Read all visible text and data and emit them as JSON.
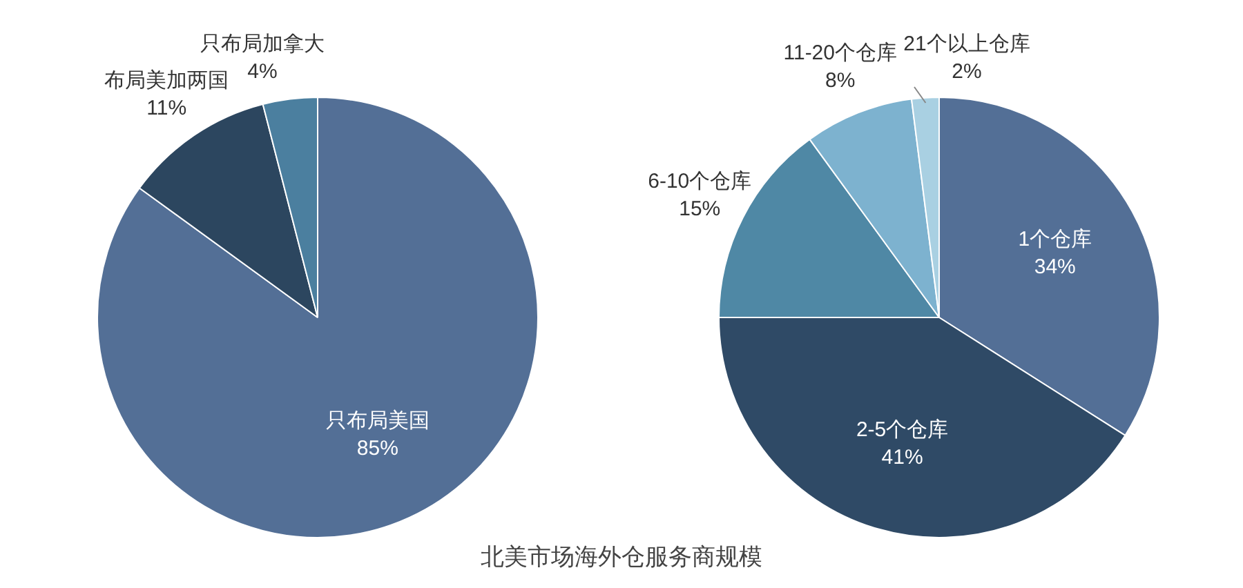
{
  "chart_data": [
    {
      "type": "pie",
      "title": "北美市场海外仓服务商规模",
      "categories": [
        "只布局美国",
        "布局美加两国",
        "只布局加拿大"
      ],
      "values": [
        85,
        11,
        4
      ],
      "value_labels": [
        "85%",
        "11%",
        "4%"
      ],
      "colors": [
        "#536f96",
        "#2c465f",
        "#4b7f9f"
      ],
      "legend": false
    },
    {
      "type": "pie",
      "categories": [
        "1个仓库",
        "2-5个仓库",
        "6-10个仓库",
        "11-20个仓库",
        "21个以上仓库"
      ],
      "values": [
        34,
        41,
        15,
        8,
        2
      ],
      "value_labels": [
        "34%",
        "41%",
        "15%",
        "8%",
        "2%"
      ],
      "colors": [
        "#536f96",
        "#2f4a66",
        "#4f88a5",
        "#7db2cf",
        "#a9d0e2"
      ],
      "legend": false
    }
  ]
}
